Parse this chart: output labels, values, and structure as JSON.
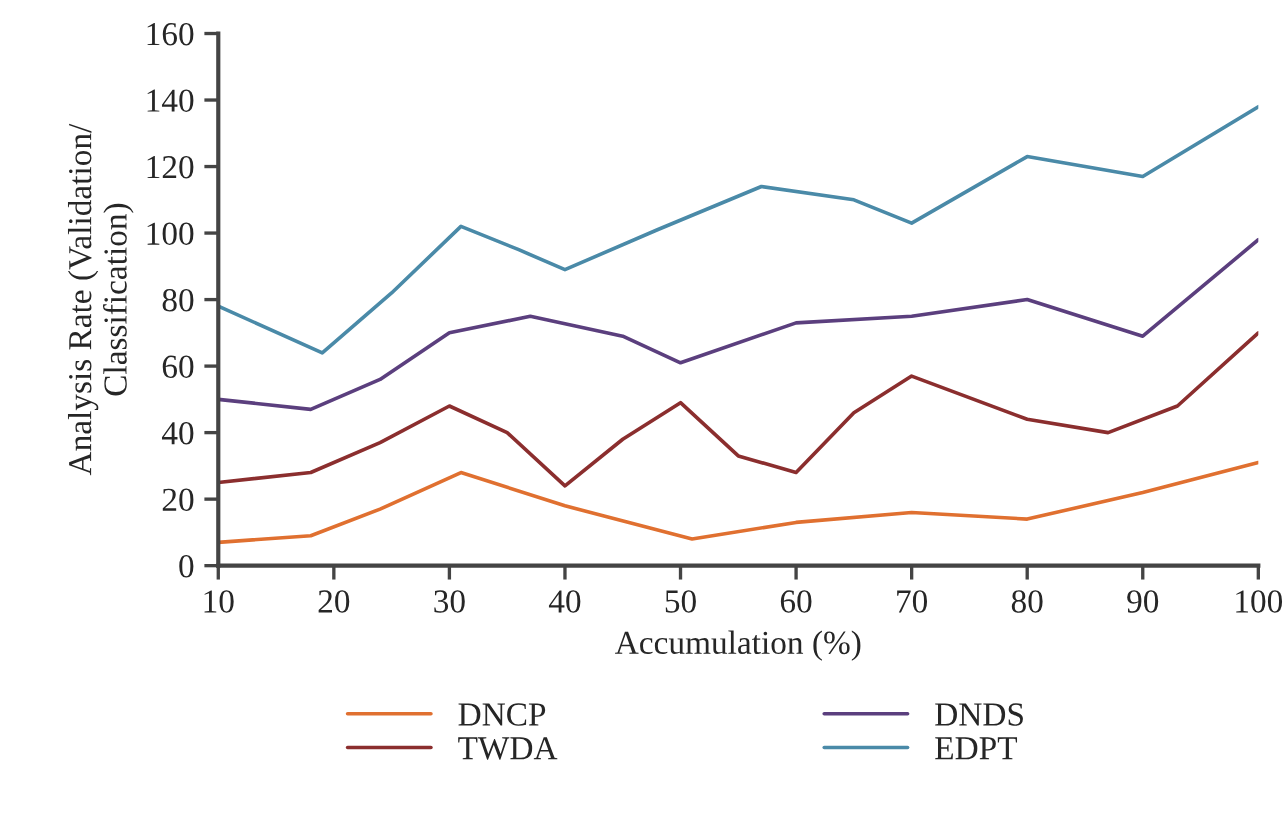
{
  "chart_data": {
    "type": "line",
    "xlabel": "Accumulation (%)",
    "ylabel": "Analysis Rate (Validation/\nClassification)",
    "xlim": [
      10,
      100
    ],
    "xticks": [
      10,
      20,
      30,
      40,
      50,
      60,
      70,
      80,
      90,
      100
    ],
    "ylim": [
      0,
      160
    ],
    "yticks": [
      0,
      20,
      40,
      60,
      80,
      100,
      120,
      140,
      160
    ],
    "grid": false,
    "legend": "bottom",
    "marker": "none",
    "line_style": "solid",
    "series": [
      {
        "name": "DNCP",
        "color": "#e07030",
        "x": [
          10,
          18,
          24,
          31,
          40,
          51,
          60,
          70,
          80,
          90,
          100
        ],
        "values": [
          7,
          9,
          17,
          28,
          18,
          8,
          13,
          16,
          14,
          22,
          31
        ]
      },
      {
        "name": "TWDA",
        "color": "#8b2e2e",
        "x": [
          10,
          18,
          24,
          30,
          35,
          40,
          45,
          50,
          55,
          60,
          65,
          70,
          80,
          87,
          93,
          100
        ],
        "values": [
          25,
          28,
          37,
          48,
          40,
          24,
          38,
          49,
          33,
          28,
          46,
          57,
          44,
          40,
          48,
          70
        ]
      },
      {
        "name": "DNDS",
        "color": "#5b3f7e",
        "x": [
          10,
          18,
          24,
          30,
          37,
          45,
          50,
          60,
          70,
          80,
          90,
          100
        ],
        "values": [
          50,
          47,
          56,
          70,
          75,
          69,
          61,
          73,
          75,
          80,
          69,
          98
        ]
      },
      {
        "name": "EDPT",
        "color": "#4a8aa8",
        "x": [
          10,
          19,
          25,
          31,
          36,
          40,
          48,
          57,
          65,
          70,
          75,
          80,
          90,
          100
        ],
        "values": [
          78,
          64,
          82,
          102,
          95,
          89,
          101,
          114,
          110,
          103,
          113,
          123,
          117,
          138
        ]
      }
    ]
  }
}
